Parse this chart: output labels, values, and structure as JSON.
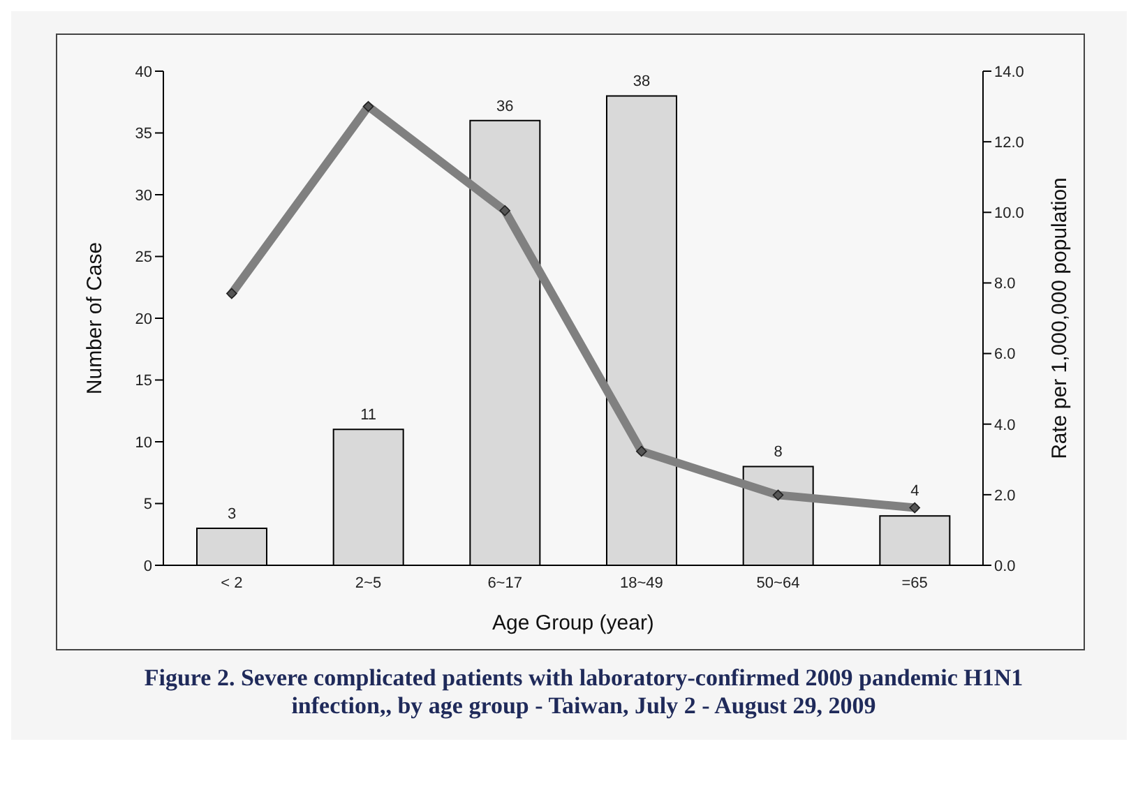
{
  "chart_data": {
    "type": "bar",
    "title": "Figure 2. Severe complicated patients with laboratory-confirmed 2009 pandemic H1N1 infection,, by age group - Taiwan, July 2 - August 29, 2009",
    "xlabel": "Age Group (year)",
    "ylabel": "Number of Case",
    "y2label": "Rate per 1,000,000 population",
    "categories": [
      "< 2",
      "2~5",
      "6~17",
      "18~49",
      "50~64",
      "=65"
    ],
    "series": [
      {
        "color": "#d9d9d9",
        "values": [
          3,
          11,
          36,
          38,
          8,
          4
        ],
        "value_labels": [
          "3",
          "11",
          "36",
          "38",
          "8",
          "4"
        ]
      },
      {
        "type": "line",
        "axis": "y2",
        "color": "#808080",
        "values": [
          7.7,
          13.0,
          10.05,
          3.23,
          1.99,
          1.63
        ],
        "marker": "diamond",
        "line_style": "solid"
      }
    ],
    "ylim": [
      0,
      40
    ],
    "yticks": [
      0,
      5,
      10,
      15,
      20,
      25,
      30,
      35,
      40
    ],
    "y2lim": [
      0,
      14
    ],
    "y2ticks": [
      {
        "value": 0,
        "label": "0.0"
      },
      {
        "value": 2,
        "label": "2.0"
      },
      {
        "value": 4,
        "label": "4.0"
      },
      {
        "value": 6,
        "label": "6.0"
      },
      {
        "value": 8,
        "label": "8.0"
      },
      {
        "value": 10,
        "label": "10.0"
      },
      {
        "value": 12,
        "label": "12.0"
      },
      {
        "value": 14,
        "label": "14.0"
      }
    ],
    "grid": false,
    "legend": false
  }
}
